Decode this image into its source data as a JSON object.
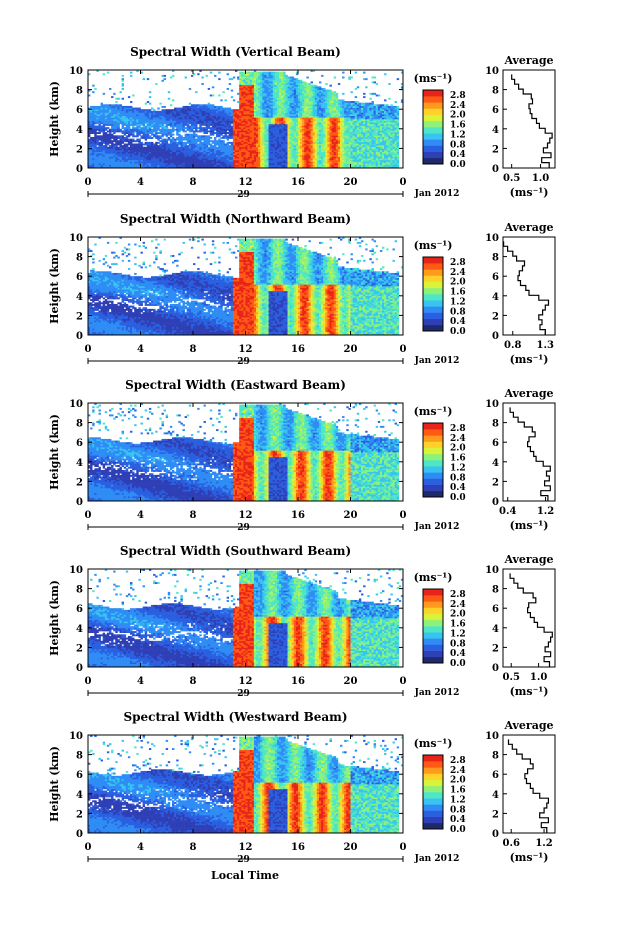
{
  "units_label": "(ms⁻¹)",
  "date_label": "Jan 2012",
  "day_label": "29",
  "x_label": "Local Time",
  "y_label": "Height (km)",
  "avg_title": "Average",
  "avg_xlabel": "(ms⁻¹)",
  "x_ticks": [
    "0",
    "4",
    "8",
    "12",
    "16",
    "20",
    "0"
  ],
  "y_ticks": [
    "0",
    "2",
    "4",
    "6",
    "8",
    "10"
  ],
  "cbar_ticks": [
    "0.0",
    "0.4",
    "0.8",
    "1.2",
    "1.6",
    "2.0",
    "2.4",
    "2.8"
  ],
  "colormap": [
    "#1f2a6b",
    "#2f3fb5",
    "#2a5fe0",
    "#2f8cf5",
    "#38c4f0",
    "#4ee6c4",
    "#8ef27a",
    "#d9f23a",
    "#ffd22a",
    "#ff9a1f",
    "#ff5a14",
    "#e8231a"
  ],
  "chart_data": [
    {
      "type": "heatmap",
      "title": "Spectral Width (Vertical Beam)",
      "xlim": [
        0,
        24
      ],
      "ylim": [
        0,
        10
      ],
      "xlabel": "",
      "ylabel": "Height (km)",
      "clim": [
        0,
        3.0
      ],
      "average": {
        "title": "Average",
        "xticks": [
          "0.5",
          "1.0"
        ],
        "xlim": [
          0.35,
          1.25
        ],
        "y": [
          0.3,
          0.8,
          1.3,
          1.8,
          2.3,
          2.8,
          3.3,
          3.8,
          4.3,
          4.8,
          5.3,
          5.8,
          6.3,
          6.8,
          7.3,
          7.8,
          8.3,
          8.8,
          9.3
        ],
        "x": [
          1.15,
          1.02,
          1.18,
          1.05,
          1.12,
          1.16,
          1.2,
          1.08,
          0.98,
          0.93,
          0.85,
          0.82,
          0.8,
          0.86,
          0.84,
          0.7,
          0.62,
          0.55,
          0.5
        ]
      }
    },
    {
      "type": "heatmap",
      "title": "Spectral Width (Northward Beam)",
      "xlim": [
        0,
        24
      ],
      "ylim": [
        0,
        10
      ],
      "xlabel": "",
      "ylabel": "Height (km)",
      "clim": [
        0,
        3.0
      ],
      "average": {
        "title": "Average",
        "xticks": [
          "0.8",
          "1.3"
        ],
        "xlim": [
          0.65,
          1.45
        ],
        "y": [
          0.3,
          0.8,
          1.3,
          1.8,
          2.3,
          2.8,
          3.3,
          3.8,
          4.3,
          4.8,
          5.3,
          5.8,
          6.3,
          6.8,
          7.3,
          7.8,
          8.3,
          8.8,
          9.3
        ],
        "x": [
          1.3,
          1.22,
          1.25,
          1.2,
          1.26,
          1.3,
          1.35,
          1.2,
          1.05,
          1.0,
          0.92,
          0.88,
          0.9,
          0.95,
          0.98,
          0.86,
          0.8,
          0.72,
          0.66
        ]
      }
    },
    {
      "type": "heatmap",
      "title": "Spectral Width (Eastward Beam)",
      "xlim": [
        0,
        24
      ],
      "ylim": [
        0,
        10
      ],
      "xlabel": "",
      "ylabel": "Height (km)",
      "clim": [
        0,
        3.0
      ],
      "average": {
        "title": "Average",
        "xticks": [
          "0.4",
          "1.2"
        ],
        "xlim": [
          0.3,
          1.4
        ],
        "y": [
          0.3,
          0.8,
          1.3,
          1.8,
          2.3,
          2.8,
          3.3,
          3.8,
          4.3,
          4.8,
          5.3,
          5.8,
          6.3,
          6.8,
          7.3,
          7.8,
          8.3,
          8.8,
          9.3
        ],
        "x": [
          1.25,
          1.1,
          1.3,
          1.18,
          1.28,
          1.22,
          1.3,
          1.15,
          1.0,
          0.95,
          0.88,
          0.82,
          0.85,
          0.98,
          0.92,
          0.75,
          0.62,
          0.52,
          0.45
        ]
      }
    },
    {
      "type": "heatmap",
      "title": "Spectral Width (Southward Beam)",
      "xlim": [
        0,
        24
      ],
      "ylim": [
        0,
        10
      ],
      "xlabel": "",
      "ylabel": "Height (km)",
      "clim": [
        0,
        3.0
      ],
      "average": {
        "title": "Average",
        "xticks": [
          "0.5",
          "1.0"
        ],
        "xlim": [
          0.35,
          1.3
        ],
        "y": [
          0.3,
          0.8,
          1.3,
          1.8,
          2.3,
          2.8,
          3.3,
          3.8,
          4.3,
          4.8,
          5.3,
          5.8,
          6.3,
          6.8,
          7.3,
          7.8,
          8.3,
          8.8,
          9.3
        ],
        "x": [
          1.2,
          1.1,
          1.22,
          1.12,
          1.18,
          1.22,
          1.25,
          1.1,
          0.98,
          0.92,
          0.85,
          0.8,
          0.82,
          0.95,
          0.9,
          0.72,
          0.62,
          0.55,
          0.48
        ]
      }
    },
    {
      "type": "heatmap",
      "title": "Spectral Width (Westward Beam)",
      "xlim": [
        0,
        24
      ],
      "ylim": [
        0,
        10
      ],
      "xlabel": "Local Time",
      "ylabel": "Height (km)",
      "clim": [
        0,
        3.0
      ],
      "average": {
        "title": "Average",
        "xticks": [
          "0.6",
          "1.2"
        ],
        "xlim": [
          0.45,
          1.4
        ],
        "y": [
          0.3,
          0.8,
          1.3,
          1.8,
          2.3,
          2.8,
          3.3,
          3.8,
          4.3,
          4.8,
          5.3,
          5.8,
          6.3,
          6.8,
          7.3,
          7.8,
          8.3,
          8.8,
          9.3
        ],
        "x": [
          1.25,
          1.15,
          1.28,
          1.12,
          1.2,
          1.25,
          1.28,
          1.12,
          1.0,
          0.95,
          0.88,
          0.85,
          0.9,
          1.0,
          0.95,
          0.8,
          0.7,
          0.62,
          0.55
        ]
      }
    }
  ]
}
